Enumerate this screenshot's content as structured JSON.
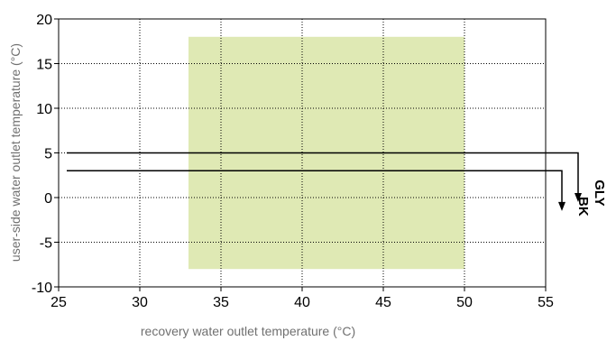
{
  "chart_data": {
    "type": "line",
    "title": "",
    "xlabel": "recovery water outlet temperature (°C)",
    "ylabel": "user-side water outlet temperature (°C)",
    "xlim": [
      25,
      55
    ],
    "ylim": [
      -10,
      20
    ],
    "x_ticks": [
      25,
      30,
      35,
      40,
      45,
      50,
      55
    ],
    "y_ticks": [
      -10,
      -5,
      0,
      5,
      10,
      15,
      20
    ],
    "x_tick_labels": [
      "25",
      "30",
      "35",
      "40",
      "45",
      "50",
      "55"
    ],
    "y_tick_labels": [
      "-10",
      "-5",
      "0",
      "5",
      "10",
      "15",
      "20"
    ],
    "grid": true,
    "grid_style": "dotted",
    "operating_region": {
      "x": [
        33,
        50
      ],
      "y": [
        -8,
        18
      ],
      "color": "#dfe9b4"
    },
    "series": [
      {
        "name": "GLY",
        "color": "#000000",
        "points": [
          [
            25.5,
            5
          ],
          [
            57,
            5
          ],
          [
            57,
            -0.5
          ]
        ],
        "arrow_end": true
      },
      {
        "name": "BK",
        "color": "#000000",
        "points": [
          [
            25.5,
            3
          ],
          [
            56,
            3
          ],
          [
            56,
            -1.5
          ]
        ],
        "arrow_end": true
      }
    ]
  }
}
